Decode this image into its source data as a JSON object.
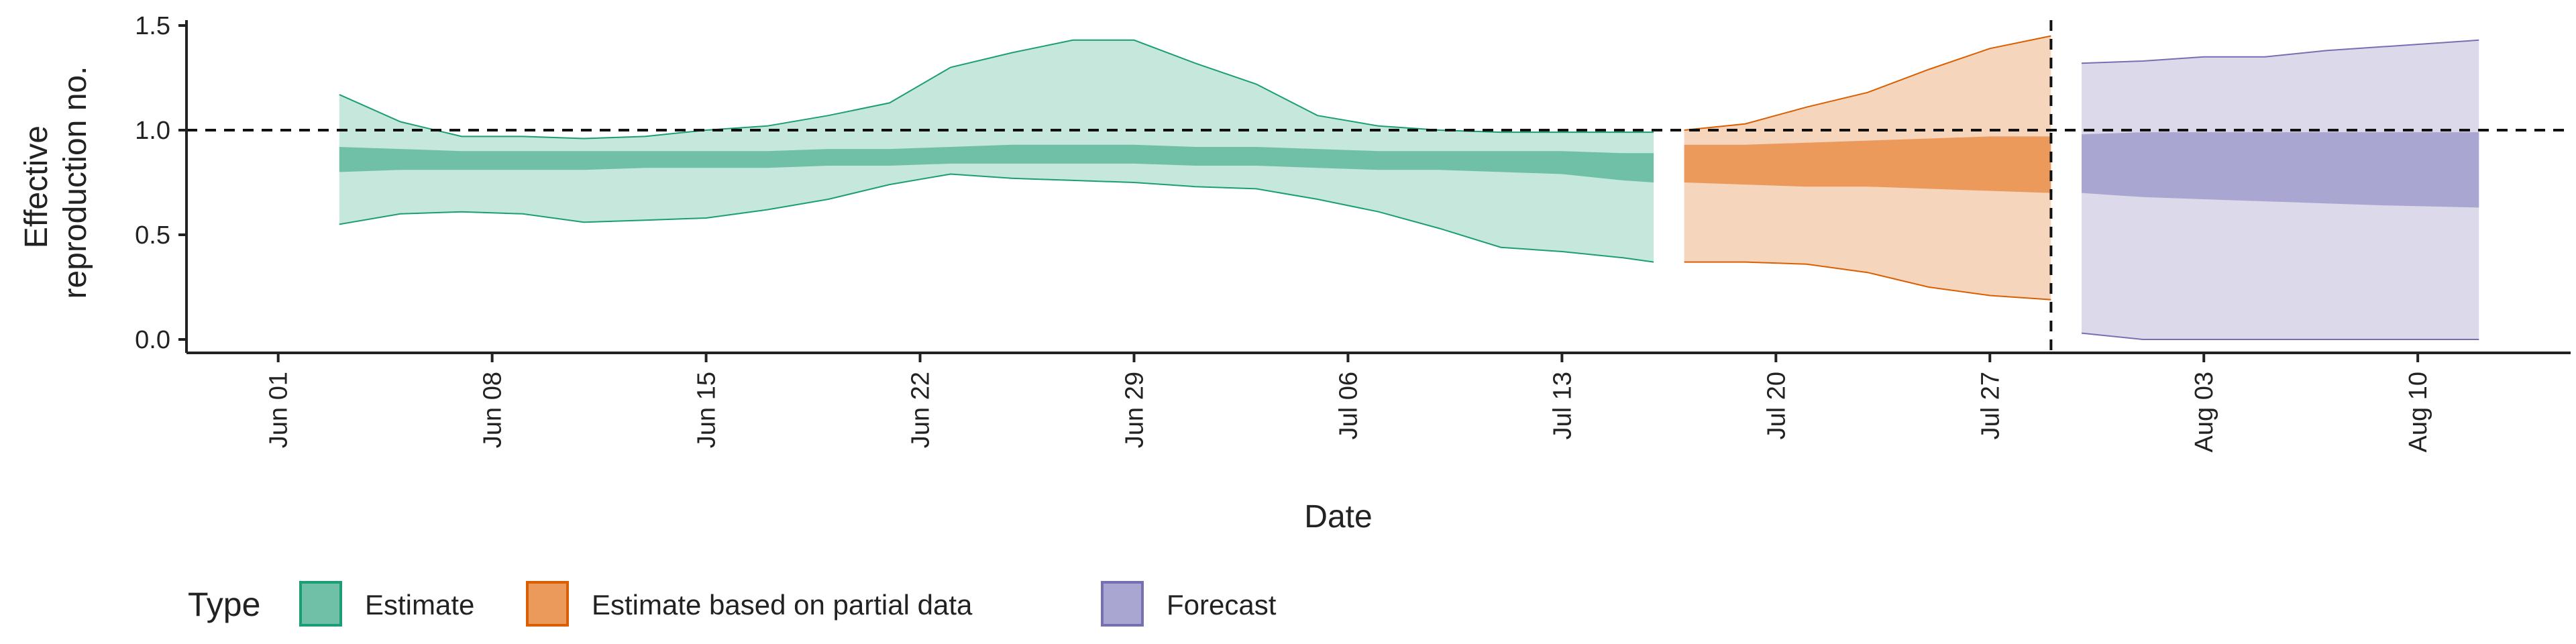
{
  "chart_data": {
    "type": "area",
    "xlabel": "Date",
    "ylabel": [
      "Effective",
      "reproduction no."
    ],
    "ylim": [
      0,
      1.5
    ],
    "xlim": [
      "2020-05-29",
      "2020-08-15"
    ],
    "reference_line_y": 1.0,
    "forecast_cutoff": "2020-07-29",
    "y_ticks": [
      {
        "value": 0.0,
        "label": "0.0"
      },
      {
        "value": 0.5,
        "label": "0.5"
      },
      {
        "value": 1.0,
        "label": "1.0"
      },
      {
        "value": 1.5,
        "label": "1.5"
      }
    ],
    "x_ticks": [
      {
        "date": "2020-06-01",
        "label": "Jun 01"
      },
      {
        "date": "2020-06-08",
        "label": "Jun 08"
      },
      {
        "date": "2020-06-15",
        "label": "Jun 15"
      },
      {
        "date": "2020-06-22",
        "label": "Jun 22"
      },
      {
        "date": "2020-06-29",
        "label": "Jun 29"
      },
      {
        "date": "2020-07-06",
        "label": "Jul 06"
      },
      {
        "date": "2020-07-13",
        "label": "Jul 13"
      },
      {
        "date": "2020-07-20",
        "label": "Jul 20"
      },
      {
        "date": "2020-07-27",
        "label": "Jul 27"
      },
      {
        "date": "2020-08-03",
        "label": "Aug 03"
      },
      {
        "date": "2020-08-10",
        "label": "Aug 10"
      }
    ],
    "legend": {
      "title": "Type",
      "position": "bottom",
      "items": [
        {
          "label": "Estimate",
          "fill": "#6fc0a7",
          "border": "#1b9e77"
        },
        {
          "label": "Estimate based on partial data",
          "fill": "#eb9a5c",
          "border": "#d95f02"
        },
        {
          "label": "Forecast",
          "fill": "#a9a6d1",
          "border": "#7570b3"
        }
      ]
    },
    "series": [
      {
        "type_label": "Estimate",
        "outer_fill": "#c5e7dc",
        "inner_fill": "#6fc0a7",
        "stroke": "#1b9e77",
        "points": [
          {
            "x": "2020-06-03",
            "lo": 0.55,
            "hi": 1.17,
            "ilo": 0.8,
            "ihi": 0.92
          },
          {
            "x": "2020-06-05",
            "lo": 0.6,
            "hi": 1.04,
            "ilo": 0.81,
            "ihi": 0.91
          },
          {
            "x": "2020-06-07",
            "lo": 0.61,
            "hi": 0.97,
            "ilo": 0.81,
            "ihi": 0.9
          },
          {
            "x": "2020-06-09",
            "lo": 0.6,
            "hi": 0.97,
            "ilo": 0.81,
            "ihi": 0.9
          },
          {
            "x": "2020-06-11",
            "lo": 0.56,
            "hi": 0.96,
            "ilo": 0.81,
            "ihi": 0.9
          },
          {
            "x": "2020-06-13",
            "lo": 0.57,
            "hi": 0.97,
            "ilo": 0.82,
            "ihi": 0.9
          },
          {
            "x": "2020-06-15",
            "lo": 0.58,
            "hi": 1.0,
            "ilo": 0.82,
            "ihi": 0.9
          },
          {
            "x": "2020-06-17",
            "lo": 0.62,
            "hi": 1.02,
            "ilo": 0.82,
            "ihi": 0.9
          },
          {
            "x": "2020-06-19",
            "lo": 0.67,
            "hi": 1.07,
            "ilo": 0.83,
            "ihi": 0.91
          },
          {
            "x": "2020-06-21",
            "lo": 0.74,
            "hi": 1.13,
            "ilo": 0.83,
            "ihi": 0.91
          },
          {
            "x": "2020-06-23",
            "lo": 0.79,
            "hi": 1.3,
            "ilo": 0.84,
            "ihi": 0.92
          },
          {
            "x": "2020-06-25",
            "lo": 0.77,
            "hi": 1.37,
            "ilo": 0.84,
            "ihi": 0.93
          },
          {
            "x": "2020-06-27",
            "lo": 0.76,
            "hi": 1.43,
            "ilo": 0.84,
            "ihi": 0.93
          },
          {
            "x": "2020-06-29",
            "lo": 0.75,
            "hi": 1.43,
            "ilo": 0.84,
            "ihi": 0.93
          },
          {
            "x": "2020-07-01",
            "lo": 0.73,
            "hi": 1.32,
            "ilo": 0.83,
            "ihi": 0.92
          },
          {
            "x": "2020-07-03",
            "lo": 0.72,
            "hi": 1.22,
            "ilo": 0.83,
            "ihi": 0.92
          },
          {
            "x": "2020-07-05",
            "lo": 0.67,
            "hi": 1.07,
            "ilo": 0.82,
            "ihi": 0.91
          },
          {
            "x": "2020-07-07",
            "lo": 0.61,
            "hi": 1.02,
            "ilo": 0.81,
            "ihi": 0.9
          },
          {
            "x": "2020-07-09",
            "lo": 0.53,
            "hi": 1.0,
            "ilo": 0.81,
            "ihi": 0.9
          },
          {
            "x": "2020-07-11",
            "lo": 0.44,
            "hi": 0.99,
            "ilo": 0.8,
            "ihi": 0.9
          },
          {
            "x": "2020-07-13",
            "lo": 0.42,
            "hi": 0.99,
            "ilo": 0.79,
            "ihi": 0.9
          },
          {
            "x": "2020-07-15",
            "lo": 0.39,
            "hi": 0.99,
            "ilo": 0.76,
            "ihi": 0.89
          },
          {
            "x": "2020-07-16",
            "lo": 0.37,
            "hi": 0.99,
            "ilo": 0.75,
            "ihi": 0.89
          }
        ]
      },
      {
        "type_label": "Estimate based on partial data",
        "outer_fill": "#f6d5bd",
        "inner_fill": "#eb9a5c",
        "stroke": "#d95f02",
        "points": [
          {
            "x": "2020-07-17",
            "lo": 0.37,
            "hi": 1.0,
            "ilo": 0.75,
            "ihi": 0.93
          },
          {
            "x": "2020-07-19",
            "lo": 0.37,
            "hi": 1.03,
            "ilo": 0.74,
            "ihi": 0.93
          },
          {
            "x": "2020-07-21",
            "lo": 0.36,
            "hi": 1.11,
            "ilo": 0.73,
            "ihi": 0.94
          },
          {
            "x": "2020-07-23",
            "lo": 0.32,
            "hi": 1.18,
            "ilo": 0.73,
            "ihi": 0.95
          },
          {
            "x": "2020-07-25",
            "lo": 0.25,
            "hi": 1.29,
            "ilo": 0.72,
            "ihi": 0.96
          },
          {
            "x": "2020-07-27",
            "lo": 0.21,
            "hi": 1.39,
            "ilo": 0.71,
            "ihi": 0.97
          },
          {
            "x": "2020-07-29",
            "lo": 0.19,
            "hi": 1.45,
            "ilo": 0.7,
            "ihi": 0.97
          }
        ]
      },
      {
        "type_label": "Forecast",
        "outer_fill": "#dbd9ea",
        "inner_fill": "#a9a6d1",
        "stroke": "#7570b3",
        "points": [
          {
            "x": "2020-07-30",
            "lo": 0.03,
            "hi": 1.32,
            "ilo": 0.7,
            "ihi": 0.98
          },
          {
            "x": "2020-08-01",
            "lo": 0.0,
            "hi": 1.33,
            "ilo": 0.68,
            "ihi": 0.99
          },
          {
            "x": "2020-08-03",
            "lo": 0.0,
            "hi": 1.35,
            "ilo": 0.67,
            "ihi": 0.99
          },
          {
            "x": "2020-08-05",
            "lo": 0.0,
            "hi": 1.35,
            "ilo": 0.66,
            "ihi": 0.99
          },
          {
            "x": "2020-08-07",
            "lo": 0.0,
            "hi": 1.38,
            "ilo": 0.65,
            "ihi": 0.99
          },
          {
            "x": "2020-08-09",
            "lo": 0.0,
            "hi": 1.4,
            "ilo": 0.64,
            "ihi": 0.99
          },
          {
            "x": "2020-08-12",
            "lo": 0.0,
            "hi": 1.43,
            "ilo": 0.63,
            "ihi": 0.99
          }
        ]
      }
    ]
  }
}
